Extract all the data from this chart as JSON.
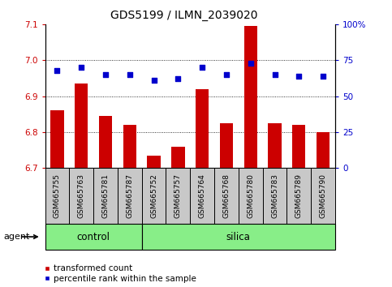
{
  "title": "GDS5199 / ILMN_2039020",
  "samples": [
    "GSM665755",
    "GSM665763",
    "GSM665781",
    "GSM665787",
    "GSM665752",
    "GSM665757",
    "GSM665764",
    "GSM665768",
    "GSM665780",
    "GSM665783",
    "GSM665789",
    "GSM665790"
  ],
  "bar_values": [
    6.86,
    6.935,
    6.845,
    6.82,
    6.735,
    6.76,
    6.92,
    6.825,
    7.095,
    6.825,
    6.82,
    6.8
  ],
  "percentile_values": [
    68,
    70,
    65,
    65,
    61,
    62,
    70,
    65,
    73,
    65,
    64,
    64
  ],
  "ylim": [
    6.7,
    7.1
  ],
  "y2lim": [
    0,
    100
  ],
  "yticks": [
    6.7,
    6.8,
    6.9,
    7.0,
    7.1
  ],
  "y2ticks": [
    0,
    25,
    50,
    75,
    100
  ],
  "y2ticklabels": [
    "0",
    "25",
    "50",
    "75",
    "100%"
  ],
  "bar_color": "#cc0000",
  "dot_color": "#0000cc",
  "bar_bottom": 6.7,
  "control_count": 4,
  "silica_count": 8,
  "control_label": "control",
  "silica_label": "silica",
  "agent_label": "agent",
  "legend_bar_label": "transformed count",
  "legend_dot_label": "percentile rank within the sample",
  "group_bg_color": "#88ee88",
  "tick_area_color": "#c8c8c8",
  "title_fontsize": 10,
  "tick_fontsize": 7.5,
  "sample_fontsize": 6.5,
  "group_fontsize": 8.5,
  "legend_fontsize": 7.5
}
